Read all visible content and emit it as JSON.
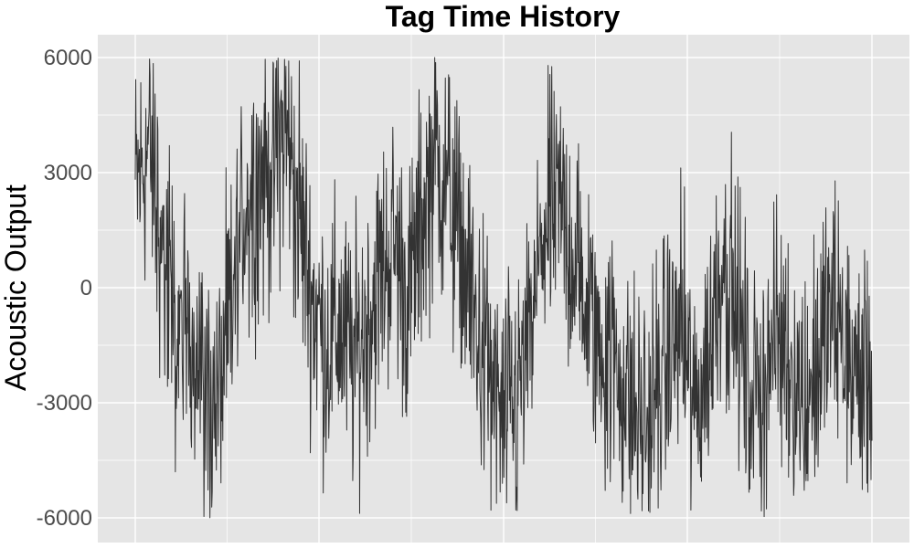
{
  "chart_data": {
    "type": "line",
    "title": "Tag Time History",
    "xlabel": "",
    "ylabel": "Acoustic Output",
    "ylim": [
      -6200,
      6200
    ],
    "y_ticks": [
      -6000,
      -3000,
      0,
      3000,
      6000
    ],
    "y_tick_labels": [
      "-6000",
      "-3000",
      "0",
      "3000",
      "6000"
    ],
    "x_tick_labels_shown": false,
    "grid": true,
    "legend": "none",
    "colors": {
      "panel": "#e5e5e5",
      "grid": "#ffffff",
      "line": "#333333",
      "tick_text": "#4d4d4d"
    },
    "series": [
      {
        "envelope": [
          [
            0,
            2500
          ],
          [
            15,
            3700
          ],
          [
            30,
            1000
          ],
          [
            45,
            -1500
          ],
          [
            60,
            -800
          ],
          [
            75,
            -2500
          ],
          [
            90,
            -3000
          ],
          [
            105,
            -800
          ],
          [
            120,
            2200
          ],
          [
            135,
            2800
          ],
          [
            150,
            3200
          ],
          [
            165,
            4200
          ],
          [
            180,
            2000
          ],
          [
            195,
            -300
          ],
          [
            210,
            -1500
          ],
          [
            225,
            -1000
          ],
          [
            240,
            -2000
          ],
          [
            255,
            -800
          ],
          [
            270,
            400
          ],
          [
            285,
            1200
          ],
          [
            300,
            -400
          ],
          [
            315,
            1800
          ],
          [
            330,
            3500
          ],
          [
            345,
            2500
          ],
          [
            360,
            800
          ],
          [
            375,
            -1000
          ],
          [
            390,
            -2500
          ],
          [
            405,
            -3500
          ],
          [
            420,
            -3000
          ],
          [
            435,
            -1200
          ],
          [
            450,
            1500
          ],
          [
            465,
            2200
          ],
          [
            480,
            1000
          ],
          [
            495,
            -400
          ],
          [
            510,
            -1500
          ],
          [
            525,
            -1800
          ],
          [
            540,
            -2800
          ],
          [
            555,
            -3500
          ],
          [
            570,
            -3000
          ],
          [
            585,
            -1800
          ],
          [
            600,
            -1000
          ],
          [
            615,
            -3300
          ],
          [
            630,
            -1800
          ],
          [
            645,
            900
          ],
          [
            660,
            -500
          ],
          [
            675,
            -2700
          ],
          [
            690,
            -2500
          ],
          [
            705,
            -1200
          ],
          [
            720,
            -1800
          ],
          [
            735,
            -3000
          ],
          [
            750,
            -2000
          ],
          [
            765,
            -600
          ],
          [
            780,
            -1500
          ],
          [
            795,
            -2500
          ],
          [
            810,
            -2000
          ]
        ],
        "samples": 1600,
        "amplitude": 1700
      }
    ]
  }
}
